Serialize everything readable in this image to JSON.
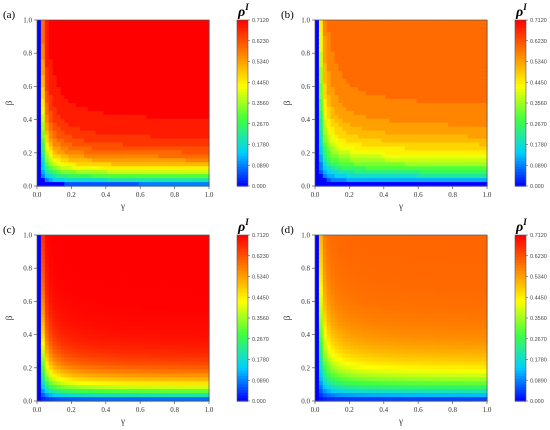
{
  "chart_data": [
    {
      "panel": "(a)",
      "type": "heatmap",
      "xlabel": "γ",
      "ylabel": "β",
      "xlim": [
        0,
        1
      ],
      "ylim": [
        0,
        1
      ],
      "xticks": [
        "0.0",
        "0.2",
        "0.4",
        "0.6",
        "0.8",
        "1.0"
      ],
      "yticks": [
        "0.0",
        "0.2",
        "0.4",
        "0.6",
        "0.8",
        "1.0"
      ],
      "colorbar": {
        "label_base": "ρ",
        "label_sup": "I",
        "range": [
          0,
          0.712
        ],
        "ticks": [
          "0.000",
          "0.0890",
          "0.1780",
          "0.2670",
          "0.3560",
          "0.4450",
          "0.5340",
          "0.6230",
          "0.7120"
        ]
      },
      "field": {
        "gamma_c": 0.02,
        "max_value": 0.712,
        "saturation_exponent": 1.7,
        "discrete_boundary": true
      }
    },
    {
      "panel": "(b)",
      "type": "heatmap",
      "xlabel": "γ",
      "ylabel": "β",
      "xlim": [
        0,
        1
      ],
      "ylim": [
        0,
        1
      ],
      "xticks": [
        "0.0",
        "0.2",
        "0.4",
        "0.6",
        "0.8",
        "1.0"
      ],
      "yticks": [
        "0.0",
        "0.2",
        "0.4",
        "0.6",
        "0.8",
        "1.0"
      ],
      "colorbar": {
        "label_base": "ρ",
        "label_sup": "I",
        "range": [
          0,
          0.712
        ],
        "ticks": [
          "0.000",
          "0.0890",
          "0.1780",
          "0.2670",
          "0.3560",
          "0.4450",
          "0.5340",
          "0.6230",
          "0.7120"
        ]
      },
      "field": {
        "gamma_c": 0.02,
        "max_value": 0.6,
        "saturation_exponent": 1.2,
        "discrete_boundary": true
      }
    },
    {
      "panel": "(c)",
      "type": "heatmap",
      "xlabel": "γ",
      "ylabel": "β",
      "xlim": [
        0,
        1
      ],
      "ylim": [
        0,
        1
      ],
      "xticks": [
        "0.0",
        "0.2",
        "0.4",
        "0.6",
        "0.8",
        "1.0"
      ],
      "yticks": [
        "0.0",
        "0.2",
        "0.4",
        "0.6",
        "0.8",
        "1.0"
      ],
      "colorbar": {
        "label_base": "ρ",
        "label_sup": "I",
        "range": [
          0,
          0.712
        ],
        "ticks": [
          "0.000",
          "0.0890",
          "0.1780",
          "0.2670",
          "0.3560",
          "0.4450",
          "0.5340",
          "0.6230",
          "0.7120"
        ]
      },
      "field": {
        "gamma_c": 0.015,
        "max_value": 0.712,
        "saturation_exponent": 1.7,
        "discrete_boundary": false
      }
    },
    {
      "panel": "(d)",
      "type": "heatmap",
      "xlabel": "γ",
      "ylabel": "β",
      "xlim": [
        0,
        1
      ],
      "ylim": [
        0,
        1
      ],
      "xticks": [
        "0.0",
        "0.2",
        "0.4",
        "0.6",
        "0.8",
        "1.0"
      ],
      "yticks": [
        "0.0",
        "0.2",
        "0.4",
        "0.6",
        "0.8",
        "1.0"
      ],
      "colorbar": {
        "label_base": "ρ",
        "label_sup": "I",
        "range": [
          0,
          0.712
        ],
        "ticks": [
          "0.000",
          "0.0890",
          "0.1780",
          "0.2670",
          "0.3560",
          "0.4450",
          "0.5340",
          "0.6230",
          "0.7120"
        ]
      },
      "field": {
        "gamma_c": 0.015,
        "max_value": 0.6,
        "saturation_exponent": 1.2,
        "discrete_boundary": false
      }
    }
  ],
  "colormap": {
    "name": "rainbow",
    "stops": [
      "#0000ff",
      "#00d0ff",
      "#40ff40",
      "#ffff00",
      "#ff8000",
      "#ff0000"
    ]
  }
}
